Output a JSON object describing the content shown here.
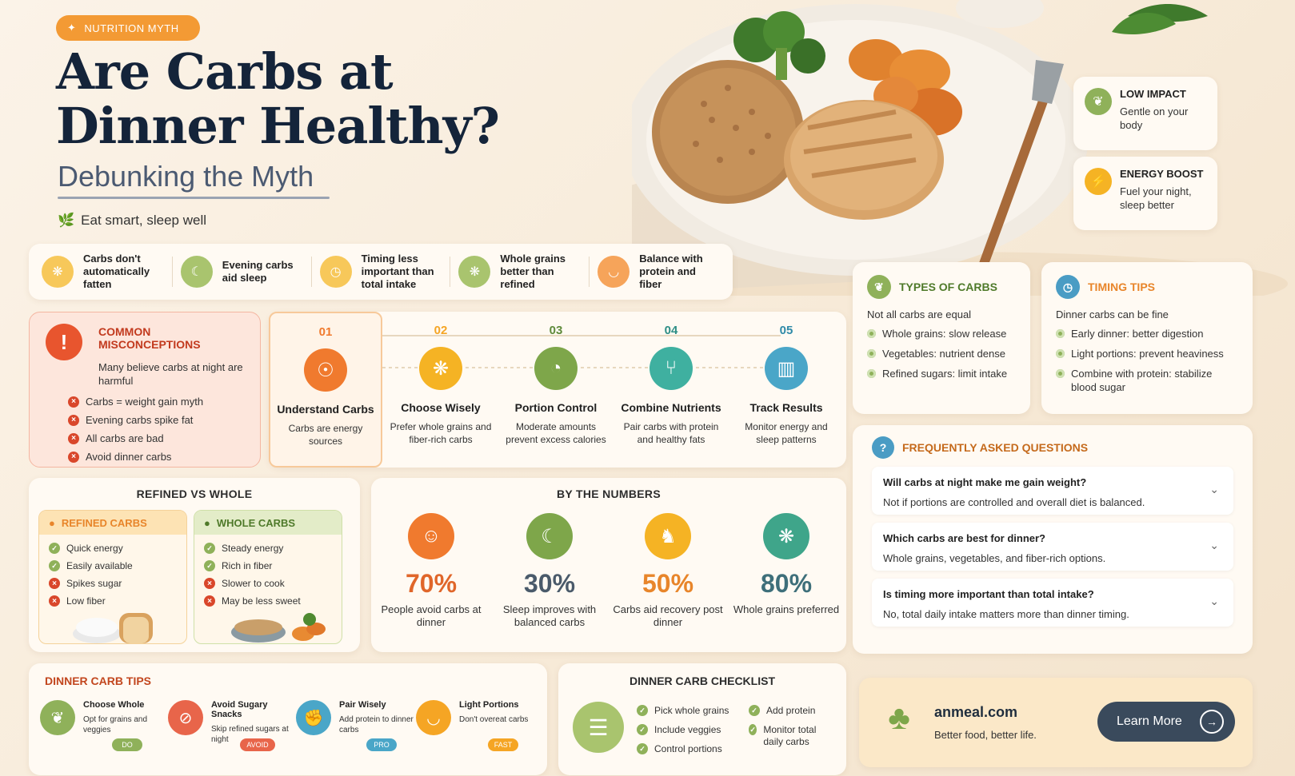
{
  "header": {
    "badge": "NUTRITION MYTH",
    "title": "Are Carbs at Dinner Healthy?",
    "subtitle": "Debunking the Myth",
    "tagline": "Eat smart, sleep well"
  },
  "side_cards": [
    {
      "title": "LOW IMPACT",
      "desc": "Gentle on your body",
      "icon": "leaf-icon"
    },
    {
      "title": "ENERGY BOOST",
      "desc": "Fuel your night, sleep better",
      "icon": "lightning-icon"
    }
  ],
  "facts": [
    {
      "text": "Carbs don't automatically fatten",
      "icon": "wheat-icon"
    },
    {
      "text": "Evening carbs aid sleep",
      "icon": "moon-icon"
    },
    {
      "text": "Timing less important than total intake",
      "icon": "clock-icon"
    },
    {
      "text": "Whole grains better than refined",
      "icon": "grain-icon"
    },
    {
      "text": "Balance with protein and fiber",
      "icon": "bowl-icon"
    }
  ],
  "misconceptions": {
    "title": "COMMON MISCONCEPTIONS",
    "lead": "Many believe carbs at night are harmful",
    "items": [
      "Carbs = weight gain myth",
      "Evening carbs spike fat",
      "All carbs are bad",
      "Avoid dinner carbs"
    ]
  },
  "steps": [
    {
      "num": "01",
      "name": "Understand Carbs",
      "desc": "Carbs are energy sources",
      "color": "#f07a2e",
      "numColor": "#f07a2e"
    },
    {
      "num": "02",
      "name": "Choose Wisely",
      "desc": "Prefer whole grains and fiber-rich carbs",
      "color": "#f5b324",
      "numColor": "#f5a524"
    },
    {
      "num": "03",
      "name": "Portion Control",
      "desc": "Moderate amounts prevent excess calories",
      "color": "#7ea64a",
      "numColor": "#5e8a3a"
    },
    {
      "num": "04",
      "name": "Combine Nutrients",
      "desc": "Pair carbs with protein and healthy fats",
      "color": "#3fb0a0",
      "numColor": "#2e8e86"
    },
    {
      "num": "05",
      "name": "Track Results",
      "desc": "Monitor energy and sleep patterns",
      "color": "#4aa6c8",
      "numColor": "#2f8aa8"
    }
  ],
  "types": {
    "title": "TYPES OF CARBS",
    "lead": "Not all carbs are equal",
    "items": [
      "Whole grains: slow release",
      "Vegetables: nutrient dense",
      "Refined sugars: limit intake"
    ]
  },
  "timing": {
    "title": "TIMING TIPS",
    "lead": "Dinner carbs can be fine",
    "items": [
      "Early dinner: better digestion",
      "Light portions: prevent heaviness",
      "Combine with protein: stabilize blood sugar"
    ]
  },
  "refined_vs_whole": {
    "title": "REFINED VS WHOLE",
    "refined": {
      "label": "REFINED CARBS",
      "pros": [
        "Quick energy",
        "Easily available"
      ],
      "cons": [
        "Spikes sugar",
        "Low fiber"
      ]
    },
    "whole": {
      "label": "WHOLE CARBS",
      "pros": [
        "Steady energy",
        "Rich in fiber"
      ],
      "cons": [
        "Slower to cook",
        "May be less sweet"
      ]
    }
  },
  "numbers": {
    "title": "BY THE NUMBERS",
    "items": [
      {
        "value": "70%",
        "desc": "People avoid carbs at dinner",
        "color": "#f07a2e",
        "icon": "people-icon"
      },
      {
        "value": "30%",
        "desc": "Sleep improves with balanced carbs",
        "color": "#7ea64a",
        "icon": "moon-icon"
      },
      {
        "value": "50%",
        "desc": "Carbs aid recovery post dinner",
        "color": "#f5b324",
        "icon": "runner-icon"
      },
      {
        "value": "80%",
        "desc": "Whole grains preferred",
        "color": "#3fa58a",
        "icon": "wheat-icon"
      }
    ]
  },
  "faq": {
    "title": "FREQUENTLY ASKED QUESTIONS",
    "items": [
      {
        "q": "Will carbs at night make me gain weight?",
        "a": "Not if portions are controlled and overall diet is balanced."
      },
      {
        "q": "Which carbs are best for dinner?",
        "a": "Whole grains, vegetables, and fiber-rich options."
      },
      {
        "q": "Is timing more important than total intake?",
        "a": "No, total daily intake matters more than dinner timing."
      }
    ]
  },
  "tips": {
    "title": "DINNER CARB TIPS",
    "items": [
      {
        "title": "Choose Whole",
        "desc": "Opt for grains and veggies",
        "pill": "DO",
        "color": "#7ea64a"
      },
      {
        "title": "Avoid Sugary Snacks",
        "desc": "Skip refined sugars at night",
        "pill": "AVOID",
        "color": "#e8654a"
      },
      {
        "title": "Pair Wisely",
        "desc": "Add protein to dinner carbs",
        "pill": "PRO",
        "color": "#4aa6c8"
      },
      {
        "title": "Light Portions",
        "desc": "Don't overeat carbs",
        "pill": "FAST",
        "color": "#f5a524"
      }
    ]
  },
  "checklist": {
    "title": "DINNER CARB CHECKLIST",
    "col1": [
      "Pick whole grains",
      "Include veggies",
      "Control portions"
    ],
    "col2": [
      "Add protein",
      "Monitor total daily carbs"
    ]
  },
  "cta": {
    "brand": "anmeal.com",
    "tagline": "Better food, better life.",
    "button": "Learn More"
  }
}
